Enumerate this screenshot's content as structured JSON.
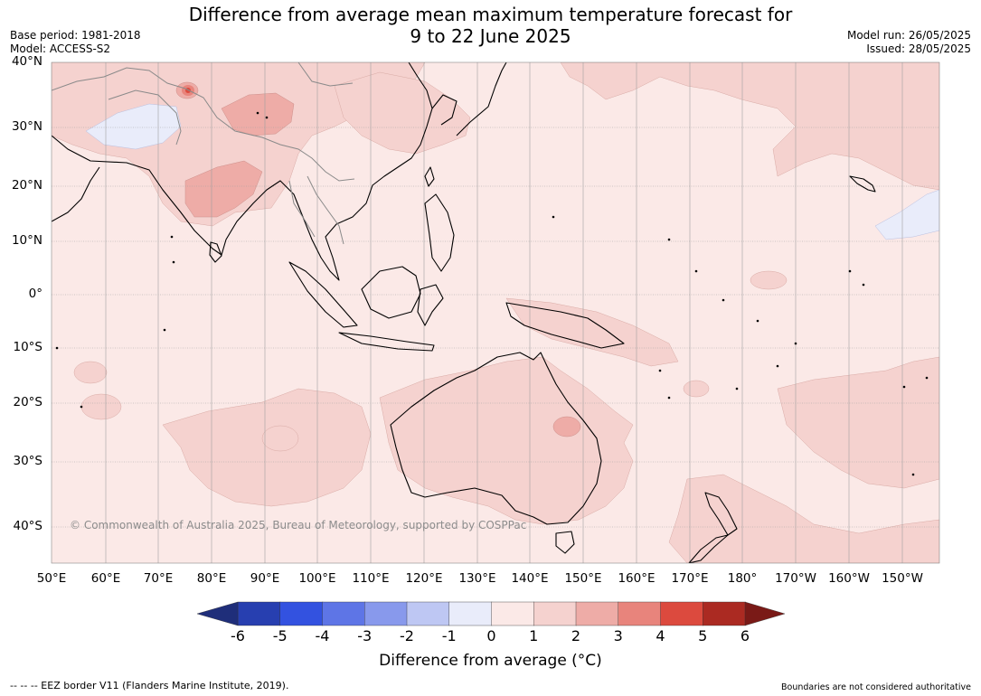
{
  "title": {
    "line1": "Difference from average mean maximum temperature forecast for",
    "line2": "9 to 22 June 2025"
  },
  "meta_left": {
    "base_period": "Base period: 1981-2018",
    "model": "Model: ACCESS-S2"
  },
  "meta_right": {
    "model_run": "Model run: 26/05/2025",
    "issued": "Issued: 28/05/2025"
  },
  "lat_labels": [
    "40°N",
    "30°N",
    "20°N",
    "10°N",
    "0°",
    "10°S",
    "20°S",
    "30°S",
    "40°S"
  ],
  "lon_labels": [
    "50°E",
    "60°E",
    "70°E",
    "80°E",
    "90°E",
    "100°E",
    "110°E",
    "120°E",
    "130°E",
    "140°E",
    "150°E",
    "160°E",
    "170°E",
    "180°",
    "170°W",
    "160°W",
    "150°W"
  ],
  "copyright": "© Commonwealth of Australia 2025, Bureau of Meteorology, supported by COSPPac",
  "colorbar": {
    "ticks": [
      "-6",
      "-5",
      "-4",
      "-3",
      "-2",
      "-1",
      "0",
      "1",
      "2",
      "3",
      "4",
      "5",
      "6"
    ],
    "colors": [
      "#273fb0",
      "#3352e0",
      "#5e75e6",
      "#8899ec",
      "#bec7f3",
      "#e9ecfa",
      "#fbe9e7",
      "#f5d2cf",
      "#eeaca7",
      "#e8847c",
      "#dc4a3e",
      "#ab2a22"
    ],
    "low_color": "#1f2e7a",
    "high_color": "#7a1a17",
    "label": "Difference from average (°C)"
  },
  "footer_left": "--  --  -- EEZ border V11 (Flanders Marine Institute, 2019).",
  "footer_right": "Boundaries are not considered authoritative",
  "map_colors": {
    "ocean_base": "#fbe9e7",
    "warm_1": "#f5d2cf",
    "warm_2": "#eeaca7",
    "warm_3": "#e8847c",
    "warm_4": "#dc4a3e",
    "cool_1": "#e9ecfa",
    "coast": "#000000",
    "border": "#8a8a8a",
    "grid": "#a0a0a0"
  }
}
